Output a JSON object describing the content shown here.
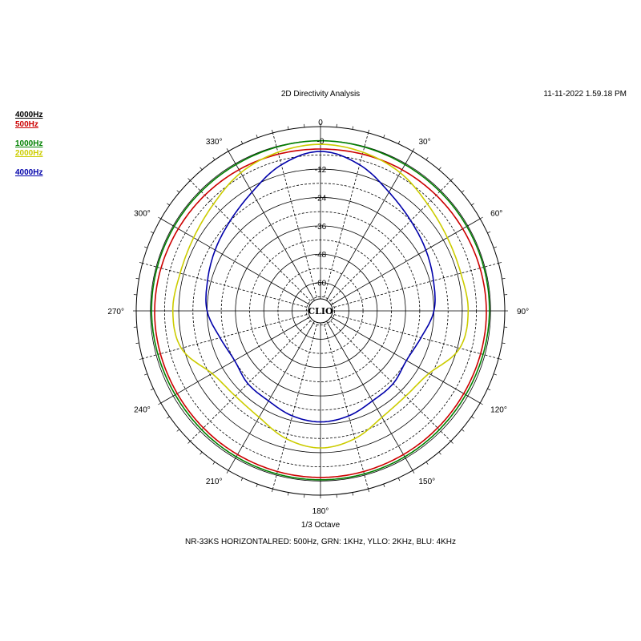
{
  "header": {
    "title": "2D Directivity Analysis",
    "timestamp": "11-11-2022 1.59.18 PM"
  },
  "legend": [
    {
      "label": "4000Hz",
      "color": "#000000"
    },
    {
      "label": "500Hz",
      "color": "#cc0000"
    },
    {
      "label": "1000Hz",
      "color": "#008000"
    },
    {
      "label": "2000Hz",
      "color": "#cccc00"
    },
    {
      "label": "4000Hz",
      "color": "#0000aa"
    }
  ],
  "footer": {
    "octave": "1/3 Octave",
    "caption": "NR-33KS HORIZONTALRED: 500Hz, GRN: 1KHz, YLLO: 2KHz, BLU: 4KHz"
  },
  "center_label": "CLIO",
  "chart_data": {
    "type": "polar",
    "angle_labels": [
      "0",
      "30°",
      "60°",
      "90°",
      "120°",
      "150°",
      "180°",
      "210°",
      "240°",
      "270°",
      "300°",
      "330°"
    ],
    "radial_labels": [
      "-0",
      "-12",
      "-24",
      "-36",
      "-48",
      "-60"
    ],
    "radial_ticks": [
      0,
      -12,
      -24,
      -36,
      -48,
      -60
    ],
    "rlim": [
      -72,
      6
    ],
    "angle_grid_step": 15,
    "series": [
      {
        "color": "#cc0000",
        "angles": [
          0,
          30,
          60,
          90,
          120,
          150,
          180,
          210,
          240,
          270,
          300,
          330
        ],
        "values": [
          -3.5,
          -3,
          -2.5,
          -1.8,
          -2,
          -1.8,
          -1.5,
          -1.8,
          -2,
          -1.8,
          -2.5,
          -3
        ]
      },
      {
        "color": "#008000",
        "angles": [
          0,
          30,
          60,
          90,
          120,
          150,
          180,
          210,
          240,
          270,
          300,
          330
        ],
        "values": [
          0,
          -0.5,
          -0.5,
          -0.5,
          -1,
          -0.7,
          -0.5,
          -0.7,
          -1,
          -0.5,
          -0.5,
          -0.5
        ]
      },
      {
        "color": "#cccc00",
        "angles": [
          0,
          15,
          30,
          45,
          60,
          75,
          90,
          105,
          120,
          135,
          150,
          165,
          180,
          195,
          210,
          225,
          240,
          255,
          270,
          285,
          300,
          315,
          330,
          345
        ],
        "values": [
          -1.5,
          -2.5,
          -4.5,
          -8,
          -10,
          -10.5,
          -9.5,
          -11,
          -19,
          -21,
          -20,
          -16,
          -14,
          -16,
          -20,
          -21,
          -19,
          -11,
          -9.5,
          -10.5,
          -10,
          -8,
          -4.5,
          -2.5
        ]
      },
      {
        "color": "#0000aa",
        "angles": [
          0,
          15,
          30,
          45,
          60,
          75,
          90,
          105,
          120,
          135,
          150,
          165,
          180,
          195,
          210,
          225,
          240,
          255,
          270,
          285,
          300,
          315,
          330,
          345
        ],
        "values": [
          -4.5,
          -8,
          -14,
          -18,
          -20.5,
          -22.5,
          -24,
          -28,
          -30,
          -28.5,
          -28,
          -26,
          -25,
          -26,
          -28,
          -28.5,
          -30,
          -28,
          -24,
          -22.5,
          -20.5,
          -18,
          -14,
          -8
        ]
      }
    ]
  }
}
